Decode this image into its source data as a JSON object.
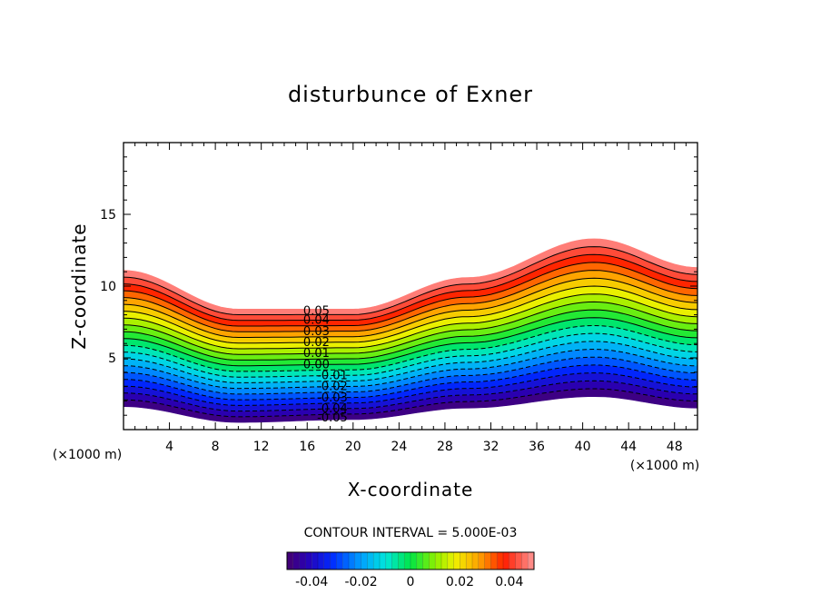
{
  "chart_data": {
    "type": "contour",
    "title": "disturbunce of Exner",
    "xlabel": "X-coordinate",
    "ylabel": "Z-coordinate",
    "x_unit": "(×1000 m)",
    "y_unit": "(×1000 m)",
    "xlim": [
      0,
      50
    ],
    "ylim": [
      0,
      20
    ],
    "x_ticks": [
      4,
      8,
      12,
      16,
      20,
      24,
      28,
      32,
      36,
      40,
      44,
      48
    ],
    "y_ticks": [
      5,
      10,
      15
    ],
    "contour_interval_text": "CONTOUR INTERVAL = 5.000E-03",
    "contour_interval": 0.005,
    "level_range": [
      -0.05,
      0.05
    ],
    "band_top_km": {
      "x": [
        0,
        10,
        20,
        30,
        41,
        50
      ],
      "z": [
        11.1,
        8.4,
        8.4,
        10.6,
        13.3,
        11.3
      ]
    },
    "band_bottom_km": {
      "x": [
        0,
        10,
        20,
        30,
        41,
        50
      ],
      "z": [
        1.6,
        0.5,
        0.7,
        1.5,
        2.3,
        1.5
      ]
    },
    "contour_labels": [
      "0.05",
      "0.04",
      "0.03",
      "0.02",
      "0.01",
      "0.00",
      "-0.01",
      "-0.02",
      "-0.03",
      "-0.04",
      "-0.05"
    ],
    "contour_label_values": [
      0.05,
      0.04,
      0.03,
      0.02,
      0.01,
      0.0,
      -0.01,
      -0.02,
      -0.03,
      -0.04,
      -0.05
    ],
    "colorbar_tick_labels": [
      "-0.04",
      "-0.02",
      "0",
      "0.02",
      "0.04"
    ],
    "colorbar_tick_values": [
      -0.04,
      -0.02,
      0,
      0.02,
      0.04
    ]
  }
}
